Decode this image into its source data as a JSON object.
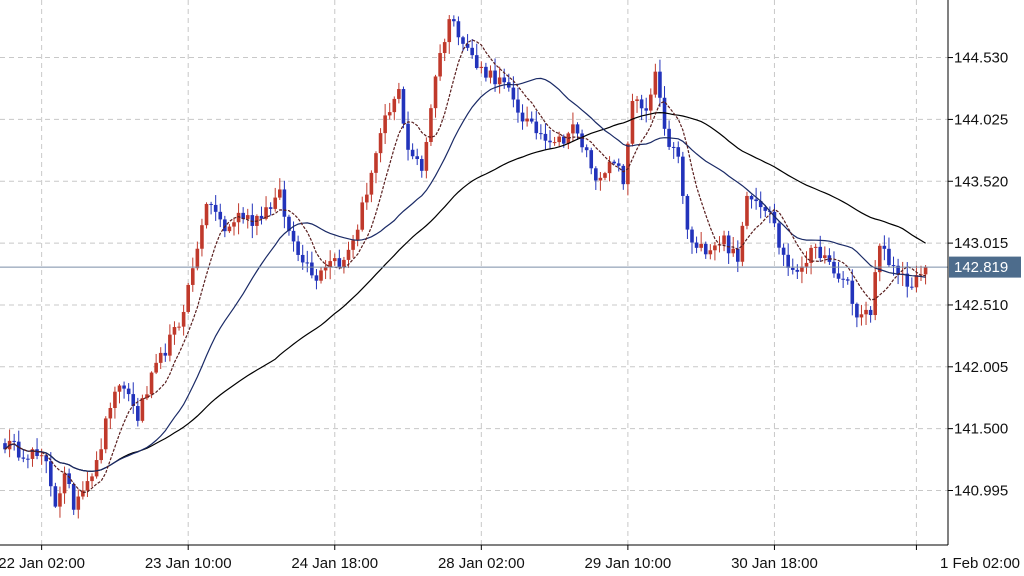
{
  "chart_data": {
    "type": "candlestick",
    "title": "",
    "xlabel": "",
    "ylabel": "",
    "ylim": [
      140.55,
      145.0
    ],
    "grid": true,
    "y_ticks": [
      144.53,
      144.025,
      143.52,
      143.015,
      142.51,
      142.005,
      141.5,
      140.995
    ],
    "y_tick_labels": [
      "144.530",
      "144.025",
      "143.520",
      "143.015",
      "142.510",
      "142.005",
      "141.500",
      "140.995"
    ],
    "x_tick_labels": [
      "22 Jan 02:00",
      "23 Jan 10:00",
      "24 Jan 18:00",
      "28 Jan 02:00",
      "29 Jan 10:00",
      "30 Jan 18:00",
      "1 Feb 02:00"
    ],
    "x_tick_index": [
      8,
      40,
      72,
      104,
      136,
      168,
      199
    ],
    "current_price": 142.819,
    "current_price_label": "142.819",
    "colors": {
      "up": "#c0392b",
      "down": "#2233bb",
      "ma_fast": "#5a1f1f",
      "ma_mid": "#1a2a66",
      "ma_slow": "#000000",
      "grid": "#c8c8c8",
      "price_line": "#7a8ea8",
      "price_tag": "#4d6c8c"
    },
    "close_anchors": [
      [
        0,
        141.38
      ],
      [
        3,
        141.32
      ],
      [
        6,
        141.3
      ],
      [
        9,
        141.2
      ],
      [
        11,
        140.9
      ],
      [
        13,
        141.1
      ],
      [
        15,
        140.88
      ],
      [
        17,
        141.05
      ],
      [
        20,
        141.2
      ],
      [
        23,
        141.7
      ],
      [
        26,
        141.85
      ],
      [
        29,
        141.6
      ],
      [
        32,
        141.9
      ],
      [
        35,
        142.15
      ],
      [
        38,
        142.35
      ],
      [
        41,
        142.8
      ],
      [
        43,
        143.2
      ],
      [
        45,
        143.35
      ],
      [
        48,
        143.1
      ],
      [
        51,
        143.25
      ],
      [
        54,
        143.2
      ],
      [
        57,
        143.3
      ],
      [
        60,
        143.4
      ],
      [
        62,
        143.1
      ],
      [
        65,
        142.9
      ],
      [
        68,
        142.75
      ],
      [
        71,
        142.9
      ],
      [
        74,
        142.85
      ],
      [
        77,
        143.15
      ],
      [
        80,
        143.6
      ],
      [
        83,
        144.0
      ],
      [
        86,
        144.25
      ],
      [
        88,
        143.8
      ],
      [
        91,
        143.6
      ],
      [
        94,
        144.4
      ],
      [
        97,
        144.85
      ],
      [
        100,
        144.7
      ],
      [
        103,
        144.45
      ],
      [
        106,
        144.4
      ],
      [
        109,
        144.3
      ],
      [
        112,
        144.1
      ],
      [
        115,
        143.95
      ],
      [
        118,
        143.9
      ],
      [
        121,
        143.85
      ],
      [
        124,
        143.95
      ],
      [
        127,
        143.75
      ],
      [
        130,
        143.5
      ],
      [
        133,
        143.7
      ],
      [
        135,
        143.5
      ],
      [
        137,
        144.2
      ],
      [
        140,
        144.05
      ],
      [
        142,
        144.4
      ],
      [
        144,
        143.9
      ],
      [
        147,
        143.7
      ],
      [
        149,
        143.1
      ],
      [
        151,
        142.95
      ],
      [
        154,
        143.0
      ],
      [
        157,
        143.05
      ],
      [
        160,
        142.85
      ],
      [
        162,
        143.45
      ],
      [
        165,
        143.35
      ],
      [
        167,
        143.3
      ],
      [
        169,
        143.0
      ],
      [
        172,
        142.75
      ],
      [
        175,
        142.9
      ],
      [
        178,
        142.95
      ],
      [
        181,
        142.75
      ],
      [
        184,
        142.7
      ],
      [
        186,
        142.4
      ],
      [
        189,
        142.45
      ],
      [
        191,
        143.05
      ],
      [
        193,
        142.8
      ],
      [
        196,
        142.75
      ],
      [
        198,
        142.65
      ],
      [
        201,
        142.82
      ]
    ]
  }
}
